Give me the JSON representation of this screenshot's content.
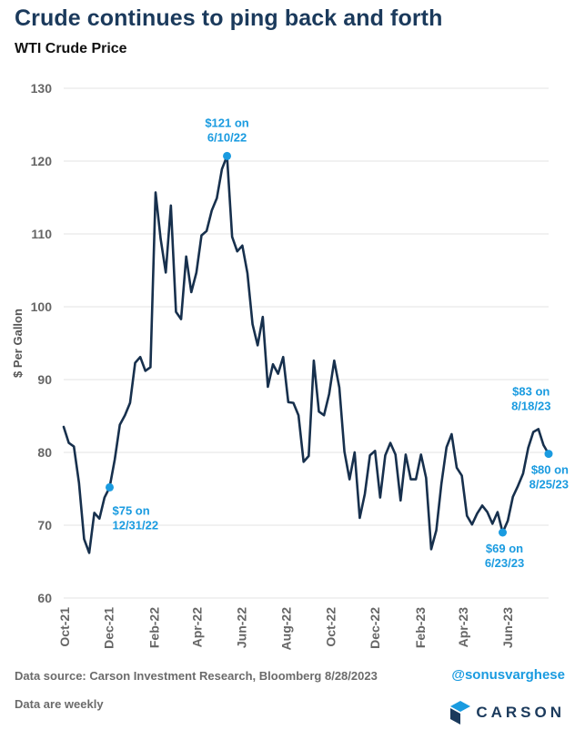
{
  "header": {
    "title": "Crude continues to ping back and forth",
    "subtitle": "WTI Crude Price"
  },
  "footer": {
    "source": "Data source: Carson Investment Research, Bloomberg   8/28/2023",
    "handle": "@sonusvarghese",
    "note": "Data are weekly",
    "logo_text": "CARSON"
  },
  "colors": {
    "line": "#17304d",
    "accent": "#1a9be0",
    "grid": "#e3e3e3",
    "axis_text": "#666666"
  },
  "chart_data": {
    "type": "line",
    "title": "WTI Crude Price",
    "ylabel": "$ Per Gallon",
    "xlabel": "",
    "ylim": [
      60,
      130
    ],
    "yticks": [
      60,
      70,
      80,
      90,
      100,
      110,
      120,
      130
    ],
    "xticks": [
      "Oct-21",
      "Dec-21",
      "Feb-22",
      "Apr-22",
      "Jun-22",
      "Aug-22",
      "Oct-22",
      "Dec-22",
      "Feb-23",
      "Apr-23",
      "Jun-23"
    ],
    "grid": true,
    "series": [
      {
        "frequency": "weekly",
        "start_date": "2021-09-30",
        "values": [
          83.5,
          81.3,
          80.8,
          75.8,
          68.1,
          66.2,
          71.7,
          70.9,
          73.8,
          75.2,
          79.0,
          83.8,
          85.1,
          86.8,
          92.3,
          93.1,
          91.2,
          91.7,
          115.7,
          109.3,
          104.7,
          113.9,
          99.3,
          98.3,
          106.9,
          102.0,
          104.7,
          109.8,
          110.4,
          113.2,
          114.9,
          118.9,
          120.7,
          109.6,
          107.6,
          108.4,
          104.6,
          97.6,
          94.7,
          98.6,
          89.0,
          92.1,
          90.8,
          93.1,
          86.9,
          86.8,
          85.1,
          78.7,
          79.5,
          92.6,
          85.6,
          85.1,
          88.0,
          92.6,
          88.9,
          80.1,
          76.3,
          80.0,
          71.0,
          74.3,
          79.6,
          80.2,
          73.8,
          79.6,
          81.3,
          79.7,
          73.4,
          79.7,
          76.3,
          76.3,
          79.7,
          76.5,
          66.7,
          69.3,
          75.7,
          80.7,
          82.5,
          77.9,
          76.8,
          71.3,
          70.1,
          71.6,
          72.7,
          71.8,
          70.2,
          71.8,
          69.0,
          70.6,
          73.9,
          75.4,
          77.1,
          80.6,
          82.8,
          83.2,
          81.0,
          79.8
        ]
      }
    ],
    "annotations": [
      {
        "label": "$75 on 12/31/22",
        "line1": "$75 on",
        "line2": "12/31/22",
        "index": 9,
        "value": 75.2,
        "pos": "below-right"
      },
      {
        "label": "$121 on 6/10/22",
        "line1": "$121 on",
        "line2": "6/10/22",
        "index": 32,
        "value": 120.7,
        "pos": "above"
      },
      {
        "label": "$69 on 6/23/23",
        "line1": "$69 on",
        "line2": "6/23/23",
        "index": 86,
        "value": 69.0,
        "pos": "below"
      },
      {
        "label": "$83 on 8/18/23",
        "line1": "$83 on",
        "line2": "8/18/23",
        "index": 93,
        "value": 83.2,
        "pos": "above-label-only"
      },
      {
        "label": "$80 on 8/25/23",
        "line1": "$80 on",
        "line2": "8/25/23",
        "index": 95,
        "value": 79.8,
        "pos": "below-left"
      }
    ]
  }
}
